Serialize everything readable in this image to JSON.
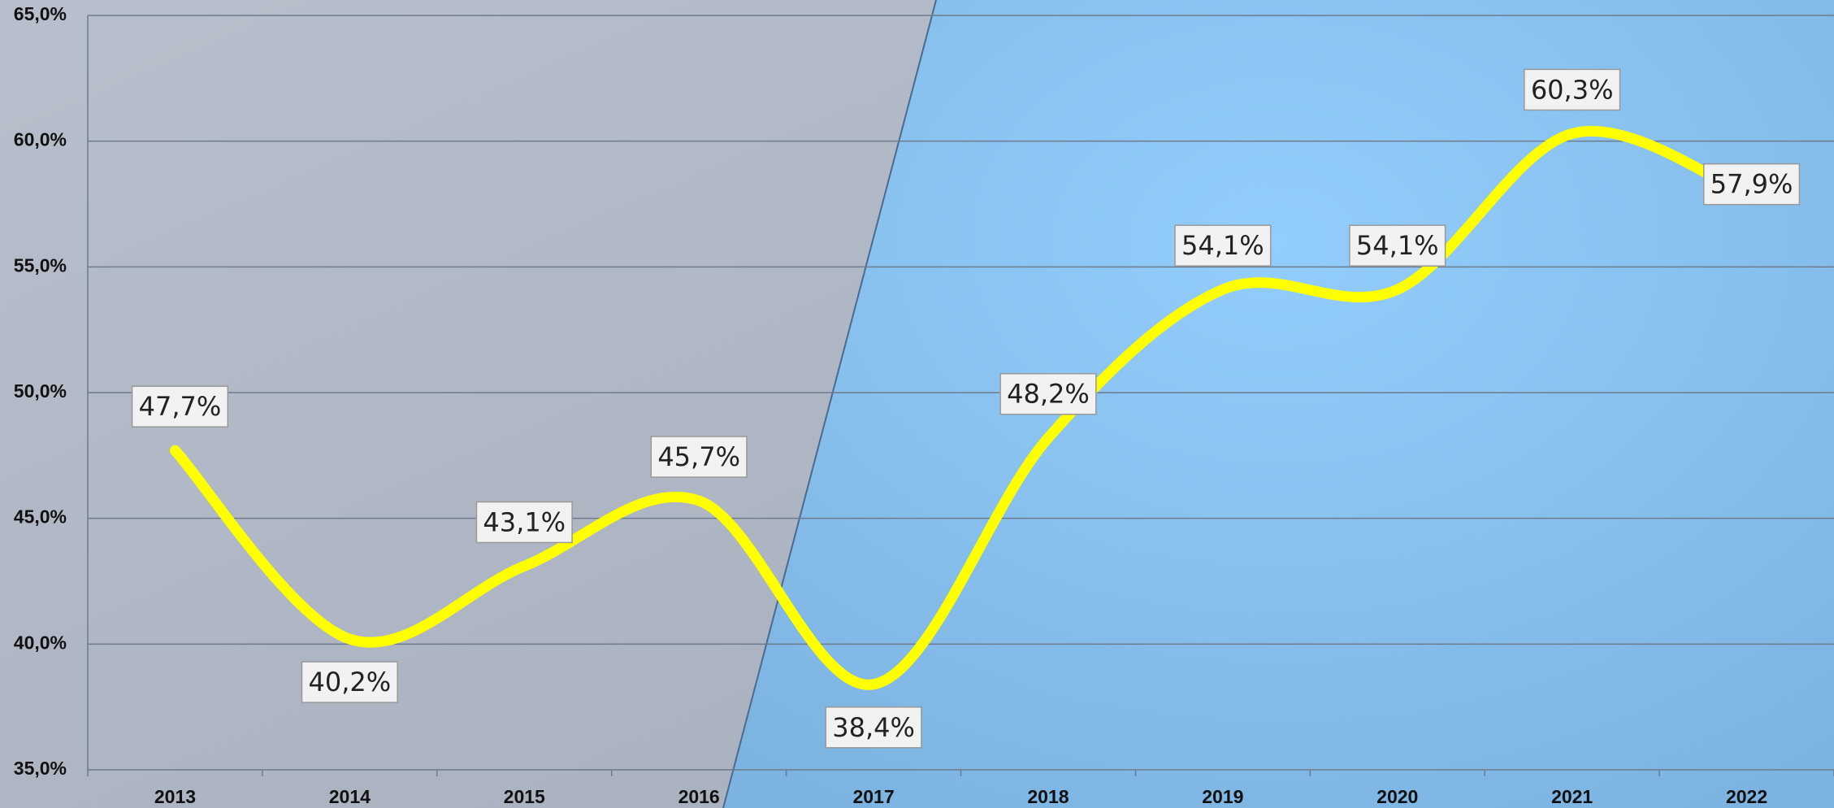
{
  "chart_data": {
    "type": "line",
    "categories": [
      "2013",
      "2014",
      "2015",
      "2016",
      "2017",
      "2018",
      "2019",
      "2020",
      "2021",
      "2022"
    ],
    "series": [
      {
        "color": "#ffff00",
        "values": [
          47.7,
          40.2,
          43.1,
          45.7,
          38.4,
          48.2,
          54.1,
          54.1,
          60.3,
          57.9
        ],
        "value_labels": [
          "47,7%",
          "40,2%",
          "43,1%",
          "45,7%",
          "38,4%",
          "48,2%",
          "54,1%",
          "54,1%",
          "60,3%",
          "57,9%"
        ]
      }
    ],
    "ylim": [
      35,
      65
    ],
    "yticks": [
      {
        "value": 35,
        "label": "35,0%"
      },
      {
        "value": 40,
        "label": "40,0%"
      },
      {
        "value": 45,
        "label": "45,0%"
      },
      {
        "value": 50,
        "label": "50,0%"
      },
      {
        "value": 55,
        "label": "55,0%"
      },
      {
        "value": 60,
        "label": "60,0%"
      },
      {
        "value": 65,
        "label": "65,0%"
      }
    ],
    "grid": true
  }
}
